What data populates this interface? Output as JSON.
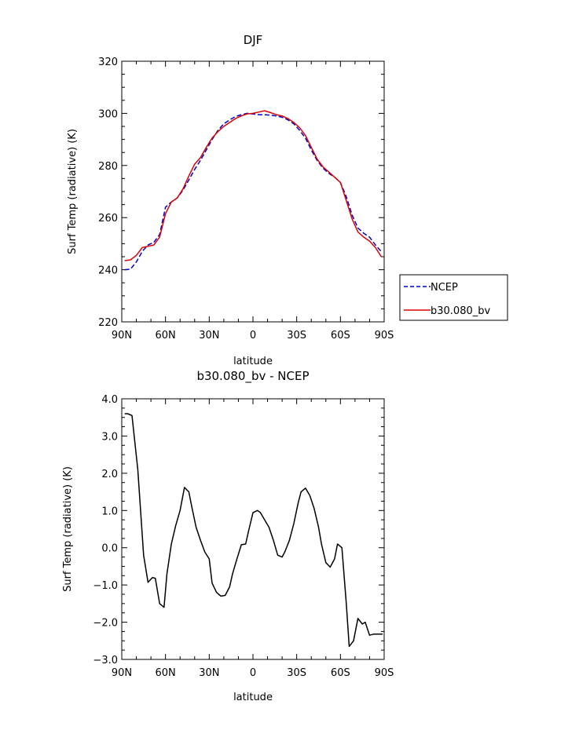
{
  "chart_data": [
    {
      "type": "line",
      "title": "DJF",
      "xlabel": "latitude",
      "ylabel": "Surf Temp (radiative) (K)",
      "xlim": [
        -90,
        90
      ],
      "ylim": [
        220,
        320
      ],
      "x_tick_values": [
        -90,
        -60,
        -30,
        0,
        30,
        60,
        90
      ],
      "x_tick_labels": [
        "90N",
        "60N",
        "30N",
        "0",
        "30S",
        "60S",
        "90S"
      ],
      "y_tick_values": [
        220,
        240,
        260,
        280,
        300,
        320
      ],
      "y_tick_labels": [
        "220",
        "240",
        "260",
        "280",
        "300",
        "320"
      ],
      "legend_position": "right",
      "series": [
        {
          "name": "NCEP",
          "color": "#0000cc",
          "dash": "dashed",
          "x": [
            -88,
            -84,
            -80,
            -76,
            -72,
            -68,
            -64,
            -60,
            -56,
            -52,
            -48,
            -44,
            -40,
            -36,
            -32,
            -28,
            -24,
            -20,
            -16,
            -12,
            -8,
            -4,
            0,
            4,
            8,
            12,
            16,
            20,
            24,
            28,
            32,
            36,
            40,
            44,
            48,
            52,
            56,
            60,
            64,
            68,
            72,
            76,
            80,
            84,
            88
          ],
          "values": [
            240.0,
            240.2,
            243.0,
            247.0,
            249.5,
            250.5,
            253.5,
            264.0,
            266.0,
            267.5,
            270.5,
            274.5,
            278.5,
            282.0,
            286.0,
            290.0,
            293.5,
            296.0,
            297.5,
            298.8,
            299.5,
            300.0,
            299.8,
            299.5,
            299.5,
            299.3,
            299.0,
            298.5,
            297.5,
            296.0,
            293.5,
            290.5,
            286.0,
            282.0,
            279.0,
            277.0,
            275.5,
            273.5,
            268.0,
            261.0,
            256.0,
            254.0,
            252.5,
            249.5,
            247.0
          ]
        },
        {
          "name": "b30.080_bv",
          "color": "#e00000",
          "dash": "solid",
          "x": [
            -88,
            -84,
            -80,
            -76,
            -72,
            -68,
            -64,
            -60,
            -56,
            -52,
            -48,
            -44,
            -40,
            -36,
            -32,
            -28,
            -24,
            -20,
            -16,
            -12,
            -8,
            -4,
            0,
            4,
            8,
            12,
            16,
            20,
            24,
            28,
            32,
            36,
            40,
            44,
            48,
            52,
            56,
            60,
            64,
            68,
            72,
            76,
            80,
            84,
            88
          ],
          "values": [
            243.5,
            243.8,
            245.5,
            248.5,
            249.0,
            249.5,
            252.5,
            261.5,
            266.0,
            267.5,
            271.0,
            276.0,
            280.5,
            283.0,
            287.0,
            290.5,
            293.0,
            295.0,
            296.5,
            298.0,
            299.0,
            299.8,
            300.0,
            300.5,
            301.0,
            300.3,
            299.5,
            299.0,
            298.0,
            296.5,
            294.5,
            291.5,
            287.0,
            282.5,
            279.5,
            277.5,
            275.5,
            273.5,
            266.5,
            259.5,
            254.5,
            252.5,
            251.0,
            248.5,
            245.0
          ]
        }
      ]
    },
    {
      "type": "line",
      "title": "b30.080_bv - NCEP",
      "xlabel": "latitude",
      "ylabel": "Surf Temp (radiative) (K)",
      "xlim": [
        -90,
        90
      ],
      "ylim": [
        -3.0,
        4.0
      ],
      "x_tick_values": [
        -90,
        -60,
        -30,
        0,
        30,
        60,
        90
      ],
      "x_tick_labels": [
        "90N",
        "60N",
        "30N",
        "0",
        "30S",
        "60S",
        "90S"
      ],
      "y_tick_values": [
        -3.0,
        -2.0,
        -1.0,
        0.0,
        1.0,
        2.0,
        3.0,
        4.0
      ],
      "y_tick_labels": [
        "−3.0",
        "−2.0",
        "−1.0",
        "0.0",
        "1.0",
        "2.0",
        "3.0",
        "4.0"
      ],
      "series": [
        {
          "name": "",
          "color": "#000000",
          "dash": "solid",
          "x": [
            -88,
            -86,
            -83,
            -79,
            -75,
            -72,
            -69,
            -67,
            -64,
            -61,
            -59,
            -56,
            -53,
            -50,
            -47,
            -44,
            -42,
            -39,
            -36,
            -33,
            -30,
            -28,
            -25,
            -22,
            -19,
            -16,
            -14,
            -11,
            -8,
            -5,
            -3,
            0,
            3,
            5,
            8,
            11,
            14,
            17,
            20,
            22,
            25,
            28,
            31,
            33,
            36,
            39,
            42,
            45,
            47,
            50,
            53,
            56,
            58,
            61,
            64,
            66,
            69,
            72,
            75,
            77,
            80,
            83,
            86,
            89
          ],
          "values": [
            3.6,
            3.6,
            3.55,
            2.1,
            -0.2,
            -0.93,
            -0.8,
            -0.82,
            -1.5,
            -1.6,
            -0.7,
            0.1,
            0.6,
            1.0,
            1.62,
            1.5,
            1.1,
            0.55,
            0.2,
            -0.12,
            -0.3,
            -0.95,
            -1.2,
            -1.3,
            -1.28,
            -1.05,
            -0.7,
            -0.3,
            0.08,
            0.1,
            0.45,
            0.94,
            1.0,
            0.95,
            0.75,
            0.55,
            0.2,
            -0.2,
            -0.25,
            -0.1,
            0.2,
            0.65,
            1.2,
            1.5,
            1.6,
            1.4,
            1.05,
            0.55,
            0.1,
            -0.4,
            -0.52,
            -0.3,
            0.1,
            0.0,
            -1.5,
            -2.65,
            -2.5,
            -1.9,
            -2.05,
            -2.0,
            -2.35,
            -2.32,
            -2.32,
            -2.32
          ]
        }
      ]
    }
  ]
}
